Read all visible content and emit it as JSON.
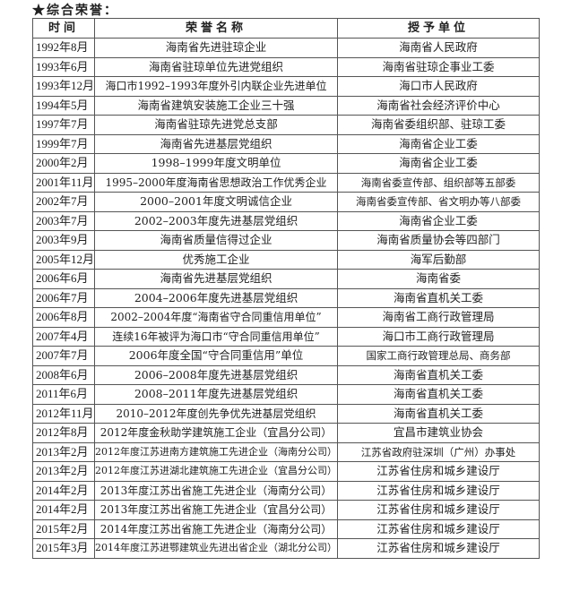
{
  "title": "★综合荣誉：",
  "table": {
    "headers": [
      "时间",
      "荣誉名称",
      "授予单位"
    ],
    "rows": [
      [
        "1992年8月",
        "海南省先进驻琼企业",
        "海南省人民政府"
      ],
      [
        "1993年6月",
        "海南省驻琼单位先进党组织",
        "海南省驻琼企事业工委"
      ],
      [
        "1993年12月",
        "海口市1992–1993年度外引内联企业先进单位",
        "海口市人民政府"
      ],
      [
        "1994年5月",
        "海南省建筑安装施工企业三十强",
        "海南省社会经济评价中心"
      ],
      [
        "1997年7月",
        "海南省驻琼先进党总支部",
        "海南省委组织部、驻琼工委"
      ],
      [
        "1999年7月",
        "海南省先进基层党组织",
        "海南省企业工委"
      ],
      [
        "2000年2月",
        "1998–1999年度文明单位",
        "海南省企业工委"
      ],
      [
        "2001年11月",
        "1995–2000年度海南省思想政治工作优秀企业",
        "海南省委宣传部、组织部等五部委"
      ],
      [
        "2002年7月",
        "2000–2001年度文明诚信企业",
        "海南省委宣传部、省文明办等八部委"
      ],
      [
        "2003年7月",
        "2002–2003年度先进基层党组织",
        "海南省企业工委"
      ],
      [
        "2003年9月",
        "海南省质量信得过企业",
        "海南省质量协会等四部门"
      ],
      [
        "2005年12月",
        "优秀施工企业",
        "海军后勤部"
      ],
      [
        "2006年6月",
        "海南省先进基层党组织",
        "海南省委"
      ],
      [
        "2006年7月",
        "2004–2006年度先进基层党组织",
        "海南省直机关工委"
      ],
      [
        "2006年8月",
        "2002–2004年度“海南省守合同重信用单位”",
        "海南省工商行政管理局"
      ],
      [
        "2007年4月",
        "连续16年被评为海口市“守合同重信用单位”",
        "海口市工商行政管理局"
      ],
      [
        "2007年7月",
        "2006年度全国“守合同重信用”单位",
        "国家工商行政管理总局、商务部"
      ],
      [
        "2008年6月",
        "2006–2008年度先进基层党组织",
        "海南省直机关工委"
      ],
      [
        "2011年6月",
        "2008–2011年度先进基层党组织",
        "海南省直机关工委"
      ],
      [
        "2012年11月",
        "2010–2012年度创先争优先进基层党组织",
        "海南省直机关工委"
      ],
      [
        "2012年8月",
        "2012年度金秋助学建筑施工企业（宜昌分公司）",
        "宜昌市建筑业协会"
      ],
      [
        "2013年2月",
        "2012年度江苏进南方建筑施工先进企业（海南分公司）",
        "江苏省政府驻深圳（广州）办事处"
      ],
      [
        "2013年2月",
        "2012年度江苏进湖北建筑施工先进企业（宜昌分公司）",
        "江苏省住房和城乡建设厅"
      ],
      [
        "2014年2月",
        "2013年度江苏出省施工先进企业（海南分公司）",
        "江苏省住房和城乡建设厅"
      ],
      [
        "2014年2月",
        "2013年度江苏出省施工先进企业（宜昌分公司）",
        "江苏省住房和城乡建设厅"
      ],
      [
        "2015年2月",
        "2014年度江苏出省施工先进企业（海南分公司）",
        "江苏省住房和城乡建设厅"
      ],
      [
        "2015年3月",
        "2014年度江苏进鄂建筑业先进出省企业（湖北分公司）",
        "江苏省住房和城乡建设厅"
      ]
    ]
  }
}
